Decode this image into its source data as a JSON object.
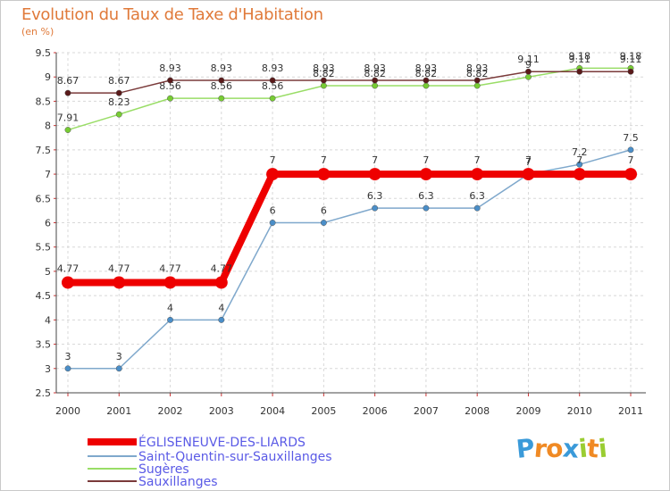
{
  "chart_data": {
    "type": "line",
    "title": "Evolution du Taux de Taxe d'Habitation",
    "subtitle": "(en %)",
    "x": [
      "2000",
      "2001",
      "2002",
      "2003",
      "2004",
      "2005",
      "2006",
      "2007",
      "2008",
      "2009",
      "2010",
      "2011"
    ],
    "ylim": [
      2.5,
      9.5
    ],
    "yticks": [
      "2.5",
      "3",
      "3.5",
      "4",
      "4.5",
      "5",
      "5.5",
      "6",
      "6.5",
      "7",
      "7.5",
      "8",
      "8.5",
      "9",
      "9.5"
    ],
    "grid": true,
    "series": [
      {
        "name": "ÉGLISENEUVE-DES-LIARDS",
        "color": "#ee0000",
        "values": [
          4.77,
          4.77,
          4.77,
          4.77,
          7,
          7,
          7,
          7,
          7,
          7,
          7,
          7
        ],
        "labels": [
          "4.77",
          "4.77",
          "4.77",
          "4.77",
          "7",
          "7",
          "7",
          "7",
          "7",
          "7",
          "7",
          "7"
        ]
      },
      {
        "name": "Saint-Quentin-sur-Sauxillanges",
        "color": "#7fa8cc",
        "values": [
          3,
          3,
          4,
          4,
          6,
          6,
          6.3,
          6.3,
          6.3,
          7,
          7.2,
          7.5
        ],
        "labels": [
          "3",
          "3",
          "4",
          "4",
          "6",
          "6",
          "6.3",
          "6.3",
          "6.3",
          "7",
          "7.2",
          "7.5"
        ]
      },
      {
        "name": "Sugères",
        "color": "#99dd66",
        "values": [
          7.91,
          8.23,
          8.56,
          8.56,
          8.56,
          8.82,
          8.82,
          8.82,
          8.82,
          9,
          9.18,
          9.18
        ],
        "labels": [
          "7.91",
          "8.23",
          "8.56",
          "8.56",
          "8.56",
          "8.82",
          "8.82",
          "8.82",
          "8.82",
          "9",
          "9.18",
          "9.18"
        ]
      },
      {
        "name": "Sauxillanges",
        "color": "#7a3a3a",
        "values": [
          8.67,
          8.67,
          8.93,
          8.93,
          8.93,
          8.93,
          8.93,
          8.93,
          8.93,
          9.11,
          9.11,
          9.11
        ],
        "labels": [
          "8.67",
          "8.67",
          "8.93",
          "8.93",
          "8.93",
          "8.93",
          "8.93",
          "8.93",
          "8.93",
          "9.11",
          "9.11",
          "9.11"
        ]
      }
    ]
  },
  "logo": {
    "letters": [
      "P",
      "r",
      "o",
      "x",
      "i",
      "t",
      "i"
    ],
    "colors": [
      "#3a9ad9",
      "#f08a24",
      "#f08a24",
      "#3a9ad9",
      "#9acd32",
      "#f08a24",
      "#9acd32"
    ]
  }
}
